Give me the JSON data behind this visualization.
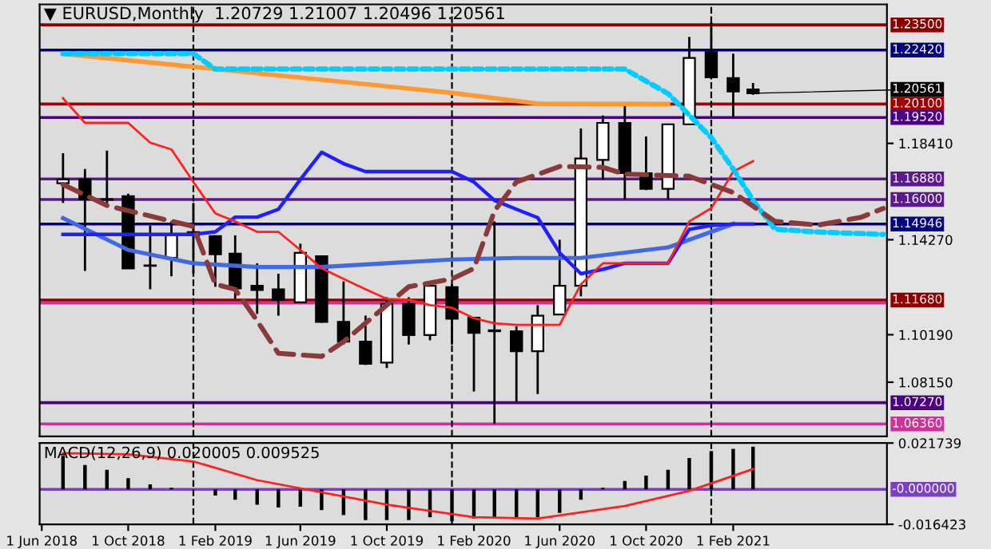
{
  "chart_data": [
    {
      "type": "candlestick",
      "title": "▼ EURUSD,Monthly  1.20729 1.21007 1.20496 1.20561",
      "x": [
        "2018-07",
        "2018-08",
        "2018-09",
        "2018-10",
        "2018-11",
        "2018-12",
        "2019-01",
        "2019-02",
        "2019-03",
        "2019-04",
        "2019-05",
        "2019-06",
        "2019-07",
        "2019-08",
        "2019-09",
        "2019-10",
        "2019-11",
        "2019-12",
        "2020-01",
        "2020-02",
        "2020-03",
        "2020-04",
        "2020-05",
        "2020-06",
        "2020-07",
        "2020-08",
        "2020-09",
        "2020-10",
        "2020-11",
        "2020-12",
        "2021-01",
        "2021-02",
        "2021-03"
      ],
      "ohlc": [
        [
          1.167,
          1.1799,
          1.1585,
          1.1686
        ],
        [
          1.1686,
          1.1731,
          1.1293,
          1.1601
        ],
        [
          1.1601,
          1.181,
          1.1574,
          1.1599
        ],
        [
          1.1614,
          1.1625,
          1.1302,
          1.1304
        ],
        [
          1.1317,
          1.1488,
          1.1214,
          1.1315
        ],
        [
          1.1349,
          1.1506,
          1.127,
          1.1446
        ],
        [
          1.146,
          1.1585,
          1.1281,
          1.1446
        ],
        [
          1.1443,
          1.1446,
          1.1225,
          1.1365
        ],
        [
          1.1367,
          1.1446,
          1.1173,
          1.1218
        ],
        [
          1.1229,
          1.1326,
          1.1108,
          1.1211
        ],
        [
          1.1214,
          1.1281,
          1.1101,
          1.1169
        ],
        [
          1.1158,
          1.141,
          1.1158,
          1.1371
        ],
        [
          1.1356,
          1.136,
          1.107,
          1.1074
        ],
        [
          1.1074,
          1.1248,
          1.0977,
          1.0989
        ],
        [
          1.0989,
          1.1101,
          1.0889,
          1.0894
        ],
        [
          1.0899,
          1.118,
          1.0876,
          1.1151
        ],
        [
          1.1151,
          1.118,
          1.0977,
          1.1018
        ],
        [
          1.1018,
          1.1236,
          1.0995,
          1.1229
        ],
        [
          1.1223,
          1.1236,
          1.0977,
          1.1088
        ],
        [
          1.1092,
          1.1096,
          1.0775,
          1.1027
        ],
        [
          1.1034,
          1.1506,
          1.0636,
          1.1038
        ],
        [
          1.1034,
          1.1056,
          1.073,
          1.0948
        ],
        [
          1.0948,
          1.1146,
          1.0764,
          1.1101
        ],
        [
          1.1106,
          1.1427,
          1.1106,
          1.1229
        ],
        [
          1.1229,
          1.1905,
          1.1184,
          1.1776
        ],
        [
          1.177,
          1.1961,
          1.1686,
          1.1929
        ],
        [
          1.1929,
          1.2001,
          1.1601,
          1.1713
        ],
        [
          1.1713,
          1.1871,
          1.164,
          1.1646
        ],
        [
          1.1646,
          1.1923,
          1.1601,
          1.1923
        ],
        [
          1.1923,
          1.2298,
          1.1923,
          1.2208
        ],
        [
          1.2233,
          1.2361,
          1.2125,
          1.2125
        ],
        [
          1.2121,
          1.2226,
          1.1952,
          1.2064
        ],
        [
          1.20729,
          1.21007,
          1.20496,
          1.20561
        ]
      ],
      "colors": [
        "#ffffff",
        "#000000",
        "#000000",
        "#000000",
        "#000000",
        "#ffffff",
        "#000000",
        "#000000",
        "#000000",
        "#000000",
        "#000000",
        "#ffffff",
        "#000000",
        "#000000",
        "#000000",
        "#ffffff",
        "#000000",
        "#ffffff",
        "#000000",
        "#000000",
        "#ffffff",
        "#000000",
        "#ffffff",
        "#ffffff",
        "#ffffff",
        "#ffffff",
        "#000000",
        "#000000",
        "#ffffff",
        "#ffffff",
        "#000000",
        "#000000",
        "#000000"
      ],
      "series": [
        {
          "type": "line",
          "color": "#00ccff",
          "line_style": "dotted",
          "x": [
            "2018-07",
            "2019-01",
            "2019-02",
            "2020-09",
            "2020-11",
            "2021-01",
            "2021-02",
            "2021-03",
            "2021-04",
            "2021-06",
            "2021-09"
          ],
          "values": [
            1.2226,
            1.2226,
            1.216,
            1.216,
            1.2055,
            1.1866,
            1.1731,
            1.1596,
            1.1472,
            1.146,
            1.145
          ]
        },
        {
          "type": "line",
          "color": "#8b3a3a",
          "line_style": "dashed",
          "x": [
            "2018-07",
            "2018-09",
            "2019-01",
            "2019-02",
            "2019-03",
            "2019-04",
            "2019-05",
            "2019-07",
            "2019-08",
            "2019-10",
            "2019-11",
            "2020-01",
            "2020-02",
            "2020-03",
            "2020-04",
            "2020-06",
            "2020-08",
            "2020-09",
            "2020-12",
            "2021-02",
            "2021-04",
            "2021-06",
            "2021-08",
            "2021-09"
          ],
          "values": [
            1.1664,
            1.1574,
            1.1484,
            1.1236,
            1.1214,
            1.1079,
            1.0939,
            1.0926,
            1.0989,
            1.1146,
            1.1225,
            1.1259,
            1.1304,
            1.1551,
            1.1675,
            1.1742,
            1.1738,
            1.1709,
            1.17,
            1.163,
            1.1506,
            1.149,
            1.1524,
            1.1562
          ]
        },
        {
          "type": "line",
          "color": "#ff9933",
          "x": [
            "2018-07",
            "2020-01",
            "2020-05",
            "2020-11"
          ],
          "values": [
            1.2226,
            1.2058,
            1.2012,
            1.201
          ]
        },
        {
          "type": "line",
          "color": "#4169e1",
          "x": [
            "2018-07",
            "2018-10",
            "2019-01",
            "2019-04",
            "2019-07",
            "2019-10",
            "2020-01",
            "2020-04",
            "2020-07",
            "2020-11",
            "2021-01",
            "2021-02"
          ],
          "values": [
            1.152,
            1.1383,
            1.1326,
            1.131,
            1.131,
            1.1326,
            1.1342,
            1.1349,
            1.1349,
            1.1394,
            1.1461,
            1.1495
          ]
        },
        {
          "type": "line",
          "color": "#2020ff",
          "values": [
            1.145,
            1.145,
            1.145,
            1.145,
            1.145,
            1.145,
            1.145,
            1.1461,
            1.1524,
            1.1524,
            1.1558,
            1.1686,
            1.1803,
            1.1754,
            1.172,
            1.172,
            1.172,
            1.172,
            1.172,
            1.1675,
            1.1596,
            1.1558,
            1.1522,
            1.1371,
            1.1281,
            1.13,
            1.1326,
            1.1326,
            1.1326,
            1.1472,
            1.1488,
            1.1495,
            1.1495
          ]
        },
        {
          "type": "line",
          "color": "#ff2020",
          "values": [
            1.2035,
            1.1929,
            1.1929,
            1.1929,
            1.1844,
            1.1815,
            1.1675,
            1.154,
            1.1506,
            1.1461,
            1.1461,
            1.1383,
            1.1304,
            1.1259,
            1.1214,
            1.1173,
            1.1169,
            1.1146,
            1.1135,
            1.109,
            1.1068,
            1.1061,
            1.1061,
            1.1061,
            1.1236,
            1.1326,
            1.1326,
            1.1326,
            1.1326,
            1.1506,
            1.1562,
            1.172,
            1.1765
          ]
        }
      ],
      "xlim": [
        "2018-05-29",
        "2021-09-06"
      ],
      "ylim": [
        1.0582,
        1.2438
      ],
      "yticks": [
        {
          "value": 1.0815,
          "label": "1.08150"
        },
        {
          "value": 1.1019,
          "label": "1.10190"
        },
        {
          "value": 1.1427,
          "label": "1.14270"
        },
        {
          "value": 1.1841,
          "label": "1.18410"
        }
      ],
      "tick_labels": "y",
      "ref_lines": [
        {
          "axis": "y",
          "value": 1.235,
          "label": "1.23500",
          "color": "#8b0000"
        },
        {
          "axis": "y",
          "value": 1.2242,
          "label": "1.22420",
          "color": "#000080"
        },
        {
          "axis": "y",
          "value": 1.201,
          "label": "1.20100",
          "color": "#a00000"
        },
        {
          "axis": "y",
          "value": 1.1952,
          "label": "1.19520",
          "color": "#4b0082"
        },
        {
          "axis": "y",
          "value": 1.1688,
          "label": "1.16880",
          "color": "#5a1a8b"
        },
        {
          "axis": "y",
          "value": 1.16,
          "label": "1.16000",
          "color": "#5a1a8b"
        },
        {
          "axis": "y",
          "value": 1.14946,
          "label": "1.14946",
          "color": "#000080"
        },
        {
          "axis": "y",
          "value": 1.1168,
          "label": "1.11680",
          "color": "#8b0000"
        },
        {
          "axis": "y",
          "value": 1.1155,
          "label": null,
          "color": "#cc3399"
        },
        {
          "axis": "y",
          "value": 1.0727,
          "label": "1.07270",
          "color": "#4b0082"
        },
        {
          "axis": "y",
          "value": 1.0636,
          "label": "1.06360",
          "color": "#cc3399"
        },
        {
          "axis": "x",
          "value": "2019-01",
          "label": null,
          "color": "#000000",
          "line_style": "dashed"
        },
        {
          "axis": "x",
          "value": "2020-01",
          "label": null,
          "color": "#000000",
          "line_style": "dashed"
        },
        {
          "axis": "x",
          "value": "2021-01",
          "label": null,
          "color": "#000000",
          "line_style": "dashed"
        }
      ],
      "annotations": [
        {
          "text": "1.20561",
          "x": "2021-03",
          "y": 1.20561
        }
      ]
    },
    {
      "type": "bar",
      "x": [
        "2018-07",
        "2018-08",
        "2018-09",
        "2018-10",
        "2018-11",
        "2018-12",
        "2019-01",
        "2019-02",
        "2019-03",
        "2019-04",
        "2019-05",
        "2019-06",
        "2019-07",
        "2019-08",
        "2019-09",
        "2019-10",
        "2019-11",
        "2019-12",
        "2020-01",
        "2020-02",
        "2020-03",
        "2020-04",
        "2020-05",
        "2020-06",
        "2020-07",
        "2020-08",
        "2020-09",
        "2020-10",
        "2020-11",
        "2020-12",
        "2021-01",
        "2021-02",
        "2021-03"
      ],
      "series": [
        {
          "type": "bar",
          "color": "#000000",
          "values": [
            0.0157,
            0.0114,
            0.0092,
            0.0052,
            0.0023,
            0.0007,
            0.0,
            -0.0029,
            -0.0049,
            -0.0072,
            -0.0085,
            -0.0082,
            -0.0098,
            -0.0121,
            -0.0144,
            -0.0144,
            -0.0144,
            -0.0131,
            -0.015,
            -0.0137,
            -0.0137,
            -0.0137,
            -0.0131,
            -0.0111,
            -0.0049,
            0.0007,
            0.0039,
            0.0065,
            0.0092,
            0.0147,
            0.018,
            0.019,
            0.020005
          ]
        },
        {
          "type": "line",
          "color": "#ff2020",
          "x": [
            "2018-07",
            "2018-10",
            "2019-01",
            "2019-04",
            "2019-10",
            "2020-02",
            "2020-05",
            "2020-09",
            "2020-12",
            "2021-03"
          ],
          "values": [
            0.017,
            0.0164,
            0.0131,
            0.0043,
            -0.0072,
            -0.0131,
            -0.0137,
            -0.0078,
            -0.0007,
            0.0095
          ]
        }
      ],
      "xlim": [
        "2018-05-29",
        "2021-09-06"
      ],
      "ylim": [
        -0.016423,
        0.021739
      ],
      "yticks": [
        -0.016423,
        0.021739
      ],
      "xticks": [
        {
          "value": "2018-06-01",
          "label": "1 Jun 2018"
        },
        {
          "value": "2018-10-01",
          "label": "1 Oct 2018"
        },
        {
          "value": "2019-02-01",
          "label": "1 Feb 2019"
        },
        {
          "value": "2019-06-01",
          "label": "1 Jun 2019"
        },
        {
          "value": "2019-10-01",
          "label": "1 Oct 2019"
        },
        {
          "value": "2020-02-01",
          "label": "1 Feb 2020"
        },
        {
          "value": "2020-06-01",
          "label": "1 Jun 2020"
        },
        {
          "value": "2020-10-01",
          "label": "1 Oct 2020"
        },
        {
          "value": "2021-02-01",
          "label": "1 Feb 2021"
        }
      ],
      "ref_lines": [
        {
          "axis": "y",
          "value": 0,
          "label": "-0.000000",
          "color": "#7b3fbf"
        },
        {
          "axis": "x",
          "value": "2019-01",
          "label": null,
          "color": "#000000",
          "line_style": "dashed"
        },
        {
          "axis": "x",
          "value": "2020-01",
          "label": null,
          "color": "#000000",
          "line_style": "dashed"
        },
        {
          "axis": "x",
          "value": "2021-01",
          "label": null,
          "color": "#000000",
          "line_style": "dashed"
        }
      ],
      "annotations": [
        "MACD(12,26,9) 0.020005 0.009525"
      ]
    }
  ]
}
